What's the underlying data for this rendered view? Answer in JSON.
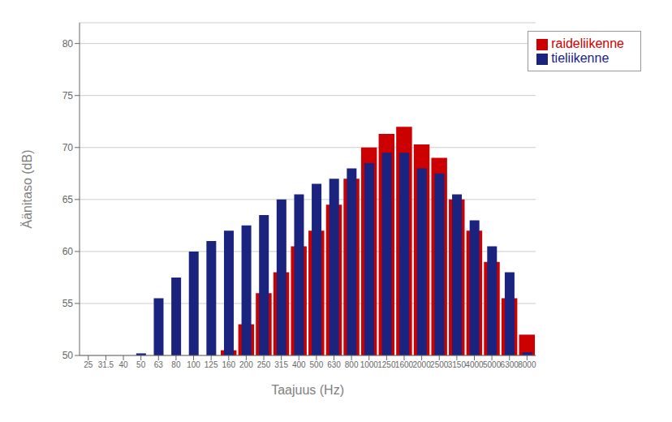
{
  "chart_data": {
    "type": "bar",
    "xlabel": "Taajuus (Hz)",
    "ylabel": "Äänitaso (dB)",
    "categories": [
      "25",
      "31.5",
      "40",
      "50",
      "63",
      "80",
      "100",
      "125",
      "160",
      "200",
      "250",
      "315",
      "400",
      "500",
      "630",
      "800",
      "1000",
      "1250",
      "1600",
      "2000",
      "2500",
      "3150",
      "4000",
      "5000",
      "6300",
      "8000"
    ],
    "series": [
      {
        "name": "raideliikenne",
        "color": "#cc0000",
        "values": [
          null,
          null,
          null,
          null,
          null,
          null,
          null,
          null,
          50.5,
          53.0,
          56.0,
          58.0,
          60.5,
          62.0,
          64.5,
          67.0,
          70.0,
          71.3,
          72.0,
          70.3,
          69.0,
          65.0,
          62.0,
          59.0,
          55.5,
          52.0
        ]
      },
      {
        "name": "tieliikenne",
        "color": "#1a237e",
        "values": [
          null,
          null,
          null,
          50.2,
          55.5,
          57.5,
          60.0,
          61.0,
          62.0,
          62.5,
          63.5,
          65.0,
          65.5,
          66.5,
          67.0,
          68.0,
          68.5,
          69.5,
          69.5,
          68.0,
          67.5,
          65.5,
          63.0,
          60.5,
          58.0,
          50.3
        ]
      }
    ],
    "ylim": [
      50,
      82
    ],
    "yticks": [
      50,
      55,
      60,
      65,
      70,
      75,
      80
    ],
    "grid": true,
    "legend": "upper right"
  }
}
